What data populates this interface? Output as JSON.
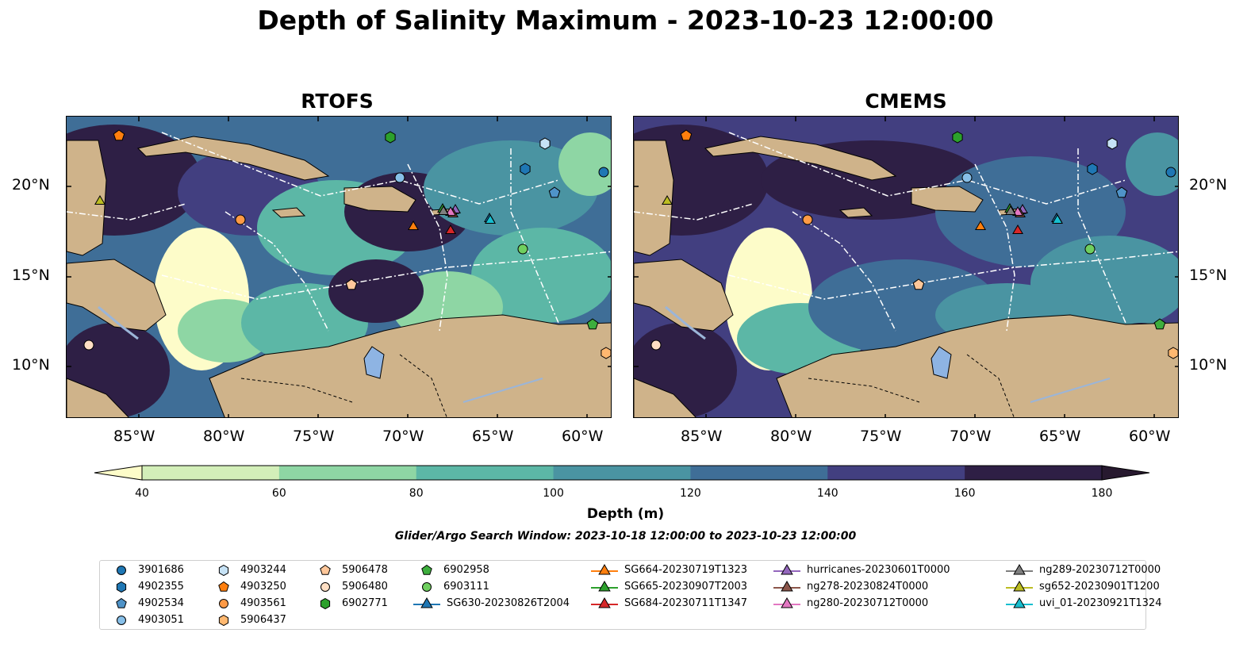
{
  "title": "Depth of Salinity Maximum - 2023-10-23 12:00:00",
  "panels": [
    {
      "title": "RTOFS"
    },
    {
      "title": "CMEMS"
    }
  ],
  "axes": {
    "lon_ticks": [
      "85°W",
      "80°W",
      "75°W",
      "70°W",
      "65°W",
      "60°W"
    ],
    "lat_ticks": [
      "20°N",
      "15°N",
      "10°N"
    ]
  },
  "colorbar": {
    "label": "Depth (m)",
    "ticks": [
      "40",
      "60",
      "80",
      "100",
      "120",
      "140",
      "160",
      "180"
    ],
    "colors": [
      "#d3efb9",
      "#8ed6a4",
      "#5cb7a6",
      "#4a94a2",
      "#3f6e97",
      "#423f80",
      "#2e1f45"
    ],
    "under_color": "#fdfcc9",
    "over_color": "#27192f"
  },
  "search_window": "Glider/Argo Search Window: 2023-10-18 12:00:00 to 2023-10-23 12:00:00",
  "legend": {
    "entries": [
      {
        "label": "3901686",
        "marker": "circle",
        "color": "#1f77b4"
      },
      {
        "label": "4902355",
        "marker": "hexagon",
        "color": "#1f77b4"
      },
      {
        "label": "4902534",
        "marker": "pentagon",
        "color": "#4f93c8"
      },
      {
        "label": "4903051",
        "marker": "circle",
        "color": "#87bfe8"
      },
      {
        "label": "4903244",
        "marker": "hexagon",
        "color": "#c6e2f5"
      },
      {
        "label": "4903250",
        "marker": "pentagon",
        "color": "#ff7f0e"
      },
      {
        "label": "4903561",
        "marker": "circle",
        "color": "#ff9a45"
      },
      {
        "label": "5906437",
        "marker": "hexagon",
        "color": "#ffb870"
      },
      {
        "label": "5906478",
        "marker": "pentagon",
        "color": "#ffc79a"
      },
      {
        "label": "5906480",
        "marker": "circle",
        "color": "#ffdfc4"
      },
      {
        "label": "6902771",
        "marker": "hexagon",
        "color": "#2ca02c"
      },
      {
        "label": "6902958",
        "marker": "pentagon",
        "color": "#3dae3d"
      },
      {
        "label": "6903111",
        "marker": "circle",
        "color": "#6fcf5f"
      },
      {
        "label": "SG630-20230826T2004",
        "marker": "triangle-line",
        "color": "#1f77b4"
      },
      {
        "label": "SG664-20230719T1323",
        "marker": "triangle-line",
        "color": "#ff7f0e"
      },
      {
        "label": "SG665-20230907T2003",
        "marker": "triangle-line",
        "color": "#2ca02c"
      },
      {
        "label": "SG684-20230711T1347",
        "marker": "triangle-line",
        "color": "#d62728"
      },
      {
        "label": "hurricanes-20230601T0000",
        "marker": "triangle-line",
        "color": "#9467bd"
      },
      {
        "label": "ng278-20230824T0000",
        "marker": "triangle-line",
        "color": "#8c564b"
      },
      {
        "label": "ng280-20230712T0000",
        "marker": "triangle-line",
        "color": "#e377c2"
      },
      {
        "label": "ng289-20230712T0000",
        "marker": "triangle-line",
        "color": "#7f7f7f"
      },
      {
        "label": "sg652-20230901T1200",
        "marker": "triangle-line",
        "color": "#bcbd22"
      },
      {
        "label": "uvi_01-20230921T1324",
        "marker": "triangle-line",
        "color": "#17becf"
      }
    ]
  },
  "map_colors": {
    "land": "#cfb38a",
    "lake": "#8eb4e3",
    "river": "#9bb5d8"
  }
}
